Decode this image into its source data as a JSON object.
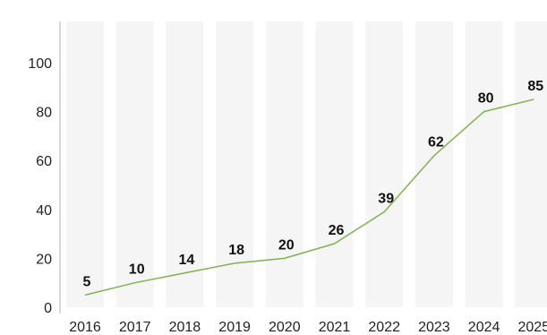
{
  "chart_data": {
    "type": "line",
    "categories": [
      "2016",
      "2017",
      "2018",
      "2019",
      "2020",
      "2021",
      "2022",
      "2023",
      "2024",
      "2025"
    ],
    "values": [
      5,
      10,
      14,
      18,
      20,
      26,
      39,
      62,
      80,
      85
    ],
    "data_labels": [
      "5",
      "10",
      "14",
      "18",
      "20",
      "26",
      "39",
      "62",
      "80",
      "85"
    ],
    "yticks": [
      "0",
      "20",
      "40",
      "60",
      "80",
      "100"
    ],
    "ylim": [
      0,
      115
    ],
    "grid": false,
    "column_bands": true,
    "title": "",
    "xlabel": "",
    "ylabel": "",
    "colors": {
      "line": "#7ab648",
      "band": "#f5f5f5",
      "axis": "#cccccc"
    }
  }
}
